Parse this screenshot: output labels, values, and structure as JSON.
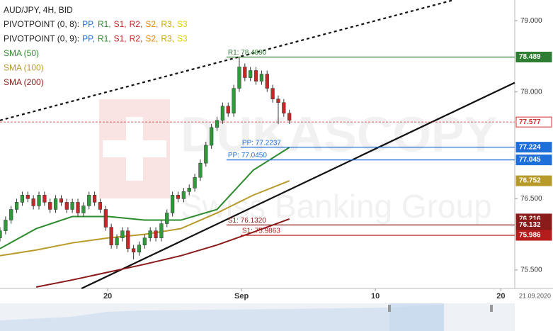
{
  "chart_data": {
    "type": "candlestick",
    "title": "AUD/JPY, 4H, BID",
    "xlim": [
      0,
      185
    ],
    "ylim": [
      75.24,
      79.29
    ],
    "xticks": [
      {
        "value": 38.7,
        "label": "20"
      },
      {
        "value": 86.8,
        "label": "Sep"
      },
      {
        "value": 134.9,
        "label": "10"
      },
      {
        "value": 180,
        "label": "20"
      }
    ],
    "yticks": [
      {
        "value": 79,
        "label": "79.000"
      },
      {
        "value": 78,
        "label": "78.000"
      },
      {
        "value": 76.5,
        "label": "76.500"
      },
      {
        "value": 75.5,
        "label": "75.500"
      }
    ],
    "date_label": "21.09.2020",
    "up_color": "#2e9a3a",
    "down_color": "#c62828",
    "candles": {
      "x": [
        0,
        2,
        4,
        6,
        8,
        10,
        12,
        14,
        16,
        18,
        20,
        22,
        24,
        26,
        28,
        30,
        32,
        34,
        36,
        38,
        40,
        42,
        44,
        46,
        48,
        50,
        52,
        54,
        56,
        58,
        60,
        62,
        64,
        66,
        68,
        70,
        72,
        74,
        76,
        78,
        80,
        82,
        84,
        86,
        88,
        90,
        92,
        94,
        96,
        98,
        100,
        102,
        104
      ],
      "open": [
        75.95,
        76.05,
        76.2,
        76.35,
        76.45,
        76.55,
        76.5,
        76.4,
        76.55,
        76.45,
        76.35,
        76.5,
        76.45,
        76.35,
        76.45,
        76.3,
        76.4,
        76.55,
        76.45,
        76.35,
        76.1,
        75.85,
        75.95,
        76.05,
        75.8,
        75.75,
        75.85,
        75.95,
        76.05,
        75.95,
        76.15,
        76.3,
        76.55,
        76.5,
        76.6,
        76.65,
        76.8,
        77.0,
        77.25,
        77.5,
        77.6,
        77.8,
        77.7,
        78.05,
        78.35,
        78.2,
        78.3,
        78.15,
        78.25,
        78.05,
        77.9,
        77.85,
        77.7
      ],
      "high": [
        76.1,
        76.25,
        76.4,
        76.5,
        76.6,
        76.6,
        76.55,
        76.6,
        76.6,
        76.5,
        76.55,
        76.55,
        76.5,
        76.5,
        76.5,
        76.45,
        76.6,
        76.6,
        76.5,
        76.4,
        76.15,
        76.0,
        76.1,
        76.1,
        75.85,
        75.9,
        76.0,
        76.1,
        76.1,
        76.2,
        76.35,
        76.6,
        76.6,
        76.65,
        76.7,
        76.85,
        77.05,
        77.3,
        77.55,
        77.65,
        77.85,
        77.85,
        78.1,
        78.48,
        78.4,
        78.35,
        78.35,
        78.3,
        78.3,
        78.1,
        77.95,
        77.9,
        77.75
      ],
      "low": [
        75.9,
        76.0,
        76.15,
        76.3,
        76.4,
        76.45,
        76.35,
        76.35,
        76.4,
        76.3,
        76.3,
        76.4,
        76.3,
        76.3,
        76.25,
        76.25,
        76.35,
        76.4,
        76.3,
        76.05,
        75.8,
        75.8,
        75.9,
        75.75,
        75.65,
        75.7,
        75.8,
        75.9,
        75.9,
        75.9,
        76.1,
        76.25,
        76.45,
        76.45,
        76.55,
        76.6,
        76.75,
        76.95,
        77.2,
        77.45,
        77.55,
        77.65,
        77.65,
        78.0,
        78.15,
        78.15,
        78.1,
        78.1,
        78.0,
        77.85,
        77.55,
        77.65,
        77.55
      ],
      "close": [
        76.05,
        76.2,
        76.35,
        76.45,
        76.55,
        76.5,
        76.4,
        76.55,
        76.45,
        76.35,
        76.5,
        76.45,
        76.35,
        76.45,
        76.3,
        76.4,
        76.55,
        76.45,
        76.35,
        76.1,
        75.85,
        75.95,
        76.05,
        75.8,
        75.75,
        75.85,
        75.95,
        76.05,
        75.95,
        76.15,
        76.3,
        76.55,
        76.5,
        76.6,
        76.65,
        76.8,
        77.0,
        77.25,
        77.5,
        77.6,
        77.8,
        77.7,
        78.05,
        78.35,
        78.2,
        78.3,
        78.15,
        78.25,
        78.05,
        77.9,
        77.85,
        77.7,
        77.6
      ]
    },
    "indicators": [
      {
        "name": "PIVOTPOINT (0, 8):",
        "levels": [
          {
            "text": "PP,",
            "color": "#1e6fd9"
          },
          {
            "text": "R1,",
            "color": "#2e8b2e"
          },
          {
            "text": "S1,",
            "color": "#c62828"
          },
          {
            "text": "R2,",
            "color": "#c62828"
          },
          {
            "text": "S2,",
            "color": "#e08a00"
          },
          {
            "text": "R3,",
            "color": "#c9a800"
          },
          {
            "text": "S3",
            "color": "#e0d000"
          }
        ]
      },
      {
        "name": "PIVOTPOINT (0, 9):",
        "levels": [
          {
            "text": "PP,",
            "color": "#1e6fd9"
          },
          {
            "text": "R1,",
            "color": "#2e8b2e"
          },
          {
            "text": "S1,",
            "color": "#c62828"
          },
          {
            "text": "R2,",
            "color": "#c62828"
          },
          {
            "text": "S2,",
            "color": "#e08a00"
          },
          {
            "text": "R3,",
            "color": "#c9a800"
          },
          {
            "text": "S3",
            "color": "#e0d000"
          }
        ]
      }
    ],
    "sma_x": [
      0,
      13,
      26,
      39,
      52,
      65,
      78,
      91,
      104
    ],
    "sma": [
      {
        "name": "SMA (50)",
        "color": "#2e8b2e",
        "values": [
          75.8,
          76.08,
          76.25,
          76.25,
          76.2,
          76.2,
          76.35,
          76.9,
          77.22
        ]
      },
      {
        "name": "SMA (100)",
        "color": "#b89a2a",
        "values": [
          75.7,
          75.78,
          75.88,
          75.95,
          76.0,
          76.08,
          76.3,
          76.55,
          76.752
        ],
        "last_label": "76.752"
      },
      {
        "name": "SMA (200)",
        "color": "#8b1a1a",
        "values": [
          null,
          75.26,
          75.36,
          75.47,
          75.58,
          75.7,
          75.85,
          76.03,
          76.216
        ],
        "last_label": "76.216"
      }
    ],
    "trendlines": [
      {
        "x": [
          0,
          163
        ],
        "values": [
          77.6,
          79.29
        ],
        "style": "dotted"
      },
      {
        "x": [
          29.3,
          185
        ],
        "values": [
          75.24,
          78.13
        ],
        "style": "solid"
      }
    ],
    "pivot_lines": [
      {
        "label": "R1: 78.4890",
        "value": 78.489,
        "value_label": "78.489",
        "x_start": 81.4,
        "color": "#2e7d32"
      },
      {
        "label": "PP: 77.2237",
        "value": 77.2237,
        "value_label": "77.224",
        "x_start": 86.5,
        "color": "#1e6fd9"
      },
      {
        "label": "PP: 77.0450",
        "value": 77.045,
        "value_label": "77.045",
        "x_start": 81.4,
        "color": "#1e6fd9"
      },
      {
        "label": "S1: 76.1320",
        "value": 76.132,
        "value_label": "76.132",
        "x_start": 81.4,
        "color": "#8b1a1a"
      },
      {
        "label": "S1: 75.9863",
        "value": 75.9863,
        "value_label": "75.986",
        "x_start": 86.5,
        "color": "#b71c1c"
      }
    ],
    "price": {
      "value": 77.577,
      "label": "77.577",
      "color": "#d32f2f"
    },
    "watermark": {
      "brand": "DUKASCOPY",
      "tagline": "Swiss Banking Group"
    }
  }
}
